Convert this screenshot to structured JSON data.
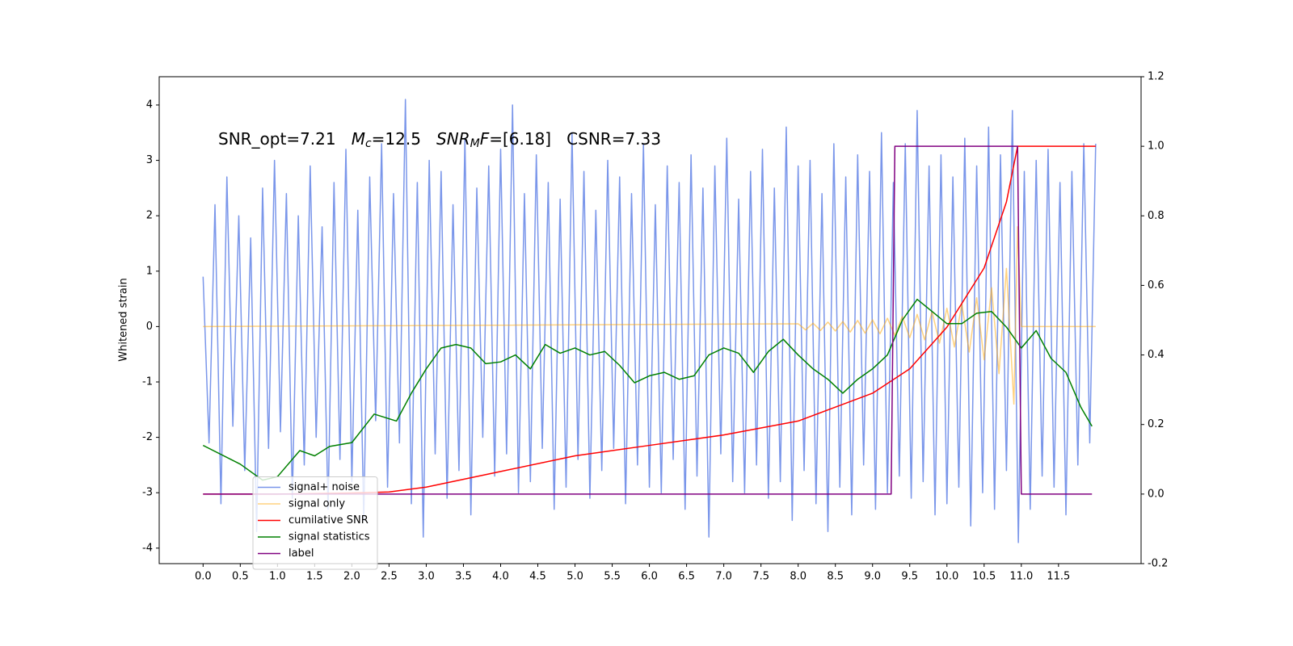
{
  "chart_data": {
    "type": "line",
    "ylabel": "Whitened strain",
    "annotation": [
      {
        "text": "SNR_opt=7.21   "
      },
      {
        "text": "M",
        "italic": true
      },
      {
        "text": "c",
        "italic": true,
        "sub": true
      },
      {
        "text": "=12.5   "
      },
      {
        "text": "SNR",
        "italic": true
      },
      {
        "text": "M",
        "italic": true,
        "sub": true
      },
      {
        "text": "F",
        "italic": true
      },
      {
        "text": "=[6.18]   CSNR=7.33"
      }
    ],
    "xlim": [
      -0.59,
      12.61
    ],
    "xticks": [
      {
        "value": 0,
        "label": "0.0"
      },
      0.5,
      {
        "value": 1,
        "label": "1.0"
      },
      1.5,
      {
        "value": 2,
        "label": "2.0"
      },
      2.5,
      {
        "value": 3,
        "label": "3.0"
      },
      3.5,
      {
        "value": 4,
        "label": "4.0"
      },
      4.5,
      {
        "value": 5,
        "label": "5.0"
      },
      5.5,
      {
        "value": 6,
        "label": "6.0"
      },
      6.5,
      {
        "value": 7,
        "label": "7.0"
      },
      7.5,
      {
        "value": 8,
        "label": "8.0"
      },
      8.5,
      {
        "value": 9,
        "label": "9.0"
      },
      9.5,
      {
        "value": 10,
        "label": "10.0"
      },
      10.5,
      {
        "value": 11,
        "label": "11.0"
      },
      11.5
    ],
    "ylim": [
      -4.28,
      4.51
    ],
    "yticks": [
      -4,
      -3,
      -2,
      -1,
      0,
      1,
      2,
      3,
      4
    ],
    "y2lim": [
      -0.2,
      1.2
    ],
    "y2ticks": [
      -0.2,
      {
        "value": 0,
        "label": "0.0"
      },
      0.2,
      0.4,
      0.6,
      0.8,
      {
        "value": 1,
        "label": "1.0"
      },
      1.2
    ],
    "legend": "lower left",
    "series": [
      {
        "name": "signal+ noise",
        "color": "#4169e1",
        "alpha": 0.7,
        "x": [
          0,
          0.08,
          0.16,
          0.24,
          0.32,
          0.4,
          0.48,
          0.56,
          0.64,
          0.72,
          0.8,
          0.88,
          0.96,
          1.04,
          1.12,
          1.2,
          1.28,
          1.36,
          1.44,
          1.52,
          1.6,
          1.68,
          1.76,
          1.84,
          1.92,
          2,
          2.08,
          2.16,
          2.24,
          2.32,
          2.4,
          2.48,
          2.56,
          2.64,
          2.72,
          2.8,
          2.88,
          2.96,
          3.04,
          3.12,
          3.2,
          3.28,
          3.36,
          3.44,
          3.52,
          3.6,
          3.68,
          3.76,
          3.84,
          3.92,
          4,
          4.08,
          4.16,
          4.24,
          4.32,
          4.4,
          4.48,
          4.56,
          4.64,
          4.72,
          4.8,
          4.88,
          4.96,
          5.04,
          5.12,
          5.2,
          5.28,
          5.36,
          5.44,
          5.52,
          5.6,
          5.68,
          5.76,
          5.84,
          5.92,
          6,
          6.08,
          6.16,
          6.24,
          6.32,
          6.4,
          6.48,
          6.56,
          6.64,
          6.72,
          6.8,
          6.88,
          6.96,
          7.04,
          7.12,
          7.2,
          7.28,
          7.36,
          7.44,
          7.52,
          7.6,
          7.68,
          7.76,
          7.84,
          7.92,
          8,
          8.08,
          8.16,
          8.24,
          8.32,
          8.4,
          8.48,
          8.56,
          8.64,
          8.72,
          8.8,
          8.88,
          8.96,
          9.04,
          9.12,
          9.2,
          9.28,
          9.36,
          9.44,
          9.52,
          9.6,
          9.68,
          9.76,
          9.84,
          9.92,
          10,
          10.08,
          10.16,
          10.24,
          10.32,
          10.4,
          10.48,
          10.56,
          10.64,
          10.72,
          10.8,
          10.88,
          10.96,
          11.04,
          11.12,
          11.2,
          11.28,
          11.36,
          11.44,
          11.52,
          11.6,
          11.68,
          11.76,
          11.84,
          11.92,
          12
        ],
        "values": [
          0.9,
          -2.1,
          2.2,
          -3.2,
          2.7,
          -1.8,
          2.0,
          -2.6,
          1.6,
          -3.7,
          2.5,
          -2.2,
          3.0,
          -1.9,
          2.4,
          -3.1,
          2.0,
          -2.5,
          2.9,
          -2.0,
          1.8,
          -3.3,
          2.6,
          -2.4,
          3.2,
          -2.8,
          2.1,
          -3.5,
          2.7,
          -1.7,
          3.3,
          -2.9,
          2.4,
          -2.1,
          4.1,
          -3.2,
          2.6,
          -3.8,
          3.0,
          -2.3,
          2.8,
          -3.1,
          2.2,
          -2.6,
          3.4,
          -3.4,
          2.5,
          -2.0,
          2.9,
          -2.7,
          3.2,
          -2.3,
          4.0,
          -3.0,
          2.4,
          -2.8,
          3.1,
          -2.2,
          2.6,
          -3.3,
          2.3,
          -2.9,
          3.5,
          -2.4,
          2.8,
          -3.1,
          2.1,
          -2.6,
          3.0,
          -2.2,
          2.7,
          -3.2,
          2.4,
          -2.5,
          3.3,
          -2.9,
          2.2,
          -3.0,
          2.9,
          -2.4,
          2.6,
          -3.3,
          3.1,
          -2.7,
          2.5,
          -3.8,
          2.9,
          -2.3,
          3.4,
          -2.8,
          2.3,
          -3.0,
          2.8,
          -2.5,
          3.2,
          -3.1,
          2.5,
          -2.8,
          3.6,
          -3.5,
          2.9,
          -2.6,
          3.0,
          -3.2,
          2.4,
          -3.7,
          3.3,
          -2.9,
          2.7,
          -3.4,
          3.1,
          -2.5,
          2.8,
          -3.3,
          3.5,
          -3.0,
          2.6,
          -2.7,
          3.3,
          -3.1,
          3.9,
          -2.8,
          2.9,
          -3.4,
          3.1,
          -3.2,
          2.7,
          -2.9,
          3.4,
          -3.6,
          2.9,
          -3.0,
          3.6,
          -3.3,
          3.1,
          -2.6,
          3.9,
          -3.9,
          2.8,
          -3.3,
          3.0,
          -2.7,
          3.2,
          -2.9,
          2.6,
          -3.4,
          2.8,
          -2.5,
          3.3,
          -2.1,
          3.3
        ]
      },
      {
        "name": "signal only",
        "color": "#ffa500",
        "alpha": 0.5,
        "x": [
          0,
          8,
          8.1,
          8.2,
          8.3,
          8.4,
          8.5,
          8.6,
          8.7,
          8.8,
          8.9,
          9,
          9.1,
          9.2,
          9.3,
          9.4,
          9.5,
          9.6,
          9.7,
          9.8,
          9.9,
          10,
          10.1,
          10.2,
          10.3,
          10.4,
          10.5,
          10.6,
          10.7,
          10.8,
          10.9,
          10.95,
          11,
          12
        ],
        "values": [
          0,
          0.05,
          -0.06,
          0.06,
          -0.07,
          0.08,
          -0.08,
          0.09,
          -0.1,
          0.11,
          -0.12,
          0.12,
          -0.13,
          0.15,
          -0.16,
          0.18,
          -0.2,
          0.22,
          -0.24,
          0.27,
          -0.3,
          0.33,
          -0.37,
          0.41,
          -0.46,
          0.52,
          -0.6,
          0.7,
          -0.85,
          1.05,
          -1.4,
          1.8,
          0,
          0
        ]
      },
      {
        "name": "cumilative SNR",
        "color": "#ff0000",
        "alpha": 1,
        "axis": "y2",
        "x": [
          0,
          1,
          2,
          2.5,
          3,
          4,
          5,
          6,
          7,
          8,
          8.5,
          9,
          9.5,
          10,
          10.5,
          10.8,
          10.95,
          12
        ],
        "values": [
          0,
          0,
          0.003,
          0.006,
          0.02,
          0.065,
          0.11,
          0.14,
          0.17,
          0.21,
          0.25,
          0.29,
          0.36,
          0.48,
          0.65,
          0.84,
          1.0,
          1.0
        ]
      },
      {
        "name": "signal statistics",
        "color": "#008000",
        "alpha": 1,
        "axis": "y2",
        "x": [
          0,
          0.5,
          0.8,
          1,
          1.3,
          1.5,
          1.7,
          2,
          2.3,
          2.6,
          2.8,
          3,
          3.2,
          3.4,
          3.6,
          3.8,
          4,
          4.2,
          4.4,
          4.6,
          4.8,
          5,
          5.2,
          5.4,
          5.6,
          5.8,
          6,
          6.2,
          6.4,
          6.6,
          6.8,
          7,
          7.2,
          7.4,
          7.6,
          7.8,
          8,
          8.2,
          8.4,
          8.6,
          8.8,
          9,
          9.2,
          9.4,
          9.6,
          9.8,
          10,
          10.2,
          10.4,
          10.6,
          10.8,
          11,
          11.2,
          11.4,
          11.6,
          11.8,
          11.95
        ],
        "values": [
          0.14,
          0.086,
          0.04,
          0.05,
          0.125,
          0.11,
          0.137,
          0.148,
          0.23,
          0.21,
          0.29,
          0.36,
          0.42,
          0.43,
          0.42,
          0.375,
          0.38,
          0.4,
          0.36,
          0.43,
          0.405,
          0.42,
          0.4,
          0.41,
          0.37,
          0.32,
          0.34,
          0.35,
          0.33,
          0.34,
          0.4,
          0.42,
          0.405,
          0.35,
          0.41,
          0.445,
          0.4,
          0.36,
          0.33,
          0.29,
          0.33,
          0.36,
          0.4,
          0.5,
          0.56,
          0.525,
          0.49,
          0.49,
          0.52,
          0.525,
          0.48,
          0.42,
          0.47,
          0.39,
          0.35,
          0.25,
          0.195
        ]
      },
      {
        "name": "label",
        "color": "#800080",
        "alpha": 1,
        "axis": "y2",
        "x": [
          0,
          9.25,
          9.3,
          10.95,
          11,
          11.95
        ],
        "values": [
          0,
          0,
          1,
          1,
          0,
          0
        ]
      }
    ]
  }
}
